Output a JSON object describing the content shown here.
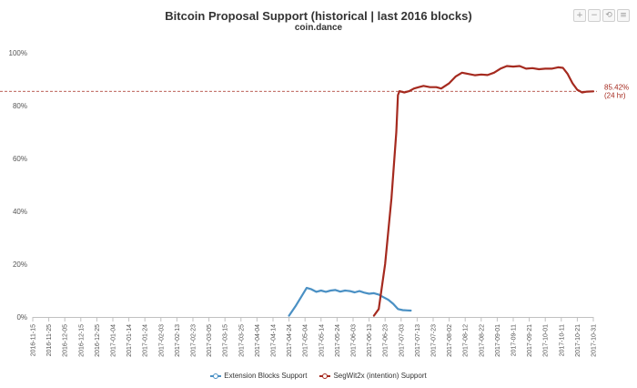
{
  "header": {
    "title": "Bitcoin Proposal Support (historical | last 2016 blocks)",
    "subtitle": "coin.dance"
  },
  "toolbar": {
    "icons": [
      "zoom-in-icon",
      "zoom-out-icon",
      "reset-zoom-icon",
      "download-icon"
    ]
  },
  "chart_data": {
    "type": "line",
    "title": "Bitcoin Proposal Support (historical | last 2016 blocks)",
    "subtitle": "coin.dance",
    "xlabel": "",
    "ylabel": "",
    "ylim": [
      0,
      100
    ],
    "yticks": [
      "0%",
      "20%",
      "40%",
      "60%",
      "80%",
      "100%"
    ],
    "categories": [
      "2016-11-15",
      "2016-11-25",
      "2016-12-05",
      "2016-12-15",
      "2016-12-25",
      "2017-01-04",
      "2017-01-14",
      "2017-01-24",
      "2017-02-03",
      "2017-02-13",
      "2017-02-23",
      "2017-03-05",
      "2017-03-15",
      "2017-03-25",
      "2017-04-04",
      "2017-04-14",
      "2017-04-24",
      "2017-05-04",
      "2017-05-14",
      "2017-05-24",
      "2017-06-03",
      "2017-06-13",
      "2017-06-23",
      "2017-07-03",
      "2017-07-13",
      "2017-07-23",
      "2017-08-02",
      "2017-08-12",
      "2017-08-22",
      "2017-09-01",
      "2017-09-11",
      "2017-09-21",
      "2017-10-01",
      "2017-10-11",
      "2017-10-21",
      "2017-10-31"
    ],
    "grid": false,
    "legend": "bottom-center",
    "series": [
      {
        "name": "Extension Blocks Support",
        "color": "#4a90c4",
        "points": [
          [
            "2017-04-24",
            0.5
          ],
          [
            "2017-04-28",
            4
          ],
          [
            "2017-05-02",
            8
          ],
          [
            "2017-05-05",
            11
          ],
          [
            "2017-05-08",
            10.5
          ],
          [
            "2017-05-11",
            9.5
          ],
          [
            "2017-05-14",
            10
          ],
          [
            "2017-05-17",
            9.5
          ],
          [
            "2017-05-20",
            10
          ],
          [
            "2017-05-23",
            10.2
          ],
          [
            "2017-05-26",
            9.6
          ],
          [
            "2017-05-29",
            10
          ],
          [
            "2017-06-01",
            9.8
          ],
          [
            "2017-06-04",
            9.3
          ],
          [
            "2017-06-07",
            9.8
          ],
          [
            "2017-06-10",
            9.2
          ],
          [
            "2017-06-13",
            8.8
          ],
          [
            "2017-06-16",
            9
          ],
          [
            "2017-06-19",
            8.5
          ],
          [
            "2017-06-22",
            7.5
          ],
          [
            "2017-06-25",
            6.5
          ],
          [
            "2017-06-28",
            5
          ],
          [
            "2017-07-01",
            3
          ],
          [
            "2017-07-04",
            2.6
          ],
          [
            "2017-07-07",
            2.5
          ],
          [
            "2017-07-09",
            2.4
          ]
        ]
      },
      {
        "name": "SegWit2x (intention) Support",
        "color": "#a52a1f",
        "points": [
          [
            "2017-06-16",
            0.5
          ],
          [
            "2017-06-19",
            3
          ],
          [
            "2017-06-23",
            20
          ],
          [
            "2017-06-27",
            45
          ],
          [
            "2017-06-30",
            70
          ],
          [
            "2017-07-01",
            84
          ],
          [
            "2017-07-02",
            85.5
          ],
          [
            "2017-07-05",
            85
          ],
          [
            "2017-07-08",
            85.5
          ],
          [
            "2017-07-11",
            86.5
          ],
          [
            "2017-07-14",
            87
          ],
          [
            "2017-07-17",
            87.5
          ],
          [
            "2017-07-21",
            87
          ],
          [
            "2017-07-25",
            87
          ],
          [
            "2017-07-28",
            86.5
          ],
          [
            "2017-08-02",
            88.5
          ],
          [
            "2017-08-06",
            91
          ],
          [
            "2017-08-10",
            92.5
          ],
          [
            "2017-08-14",
            92
          ],
          [
            "2017-08-18",
            91.5
          ],
          [
            "2017-08-22",
            91.8
          ],
          [
            "2017-08-26",
            91.6
          ],
          [
            "2017-08-30",
            92.5
          ],
          [
            "2017-09-03",
            94
          ],
          [
            "2017-09-07",
            95
          ],
          [
            "2017-09-11",
            94.8
          ],
          [
            "2017-09-15",
            95
          ],
          [
            "2017-09-19",
            94
          ],
          [
            "2017-09-23",
            94.2
          ],
          [
            "2017-09-27",
            93.8
          ],
          [
            "2017-10-01",
            94
          ],
          [
            "2017-10-05",
            94
          ],
          [
            "2017-10-09",
            94.5
          ],
          [
            "2017-10-12",
            94.3
          ],
          [
            "2017-10-15",
            92
          ],
          [
            "2017-10-18",
            88.5
          ],
          [
            "2017-10-21",
            86
          ],
          [
            "2017-10-24",
            85
          ],
          [
            "2017-10-27",
            85.3
          ],
          [
            "2017-10-31",
            85.4
          ]
        ]
      }
    ],
    "reference_line": {
      "value": 85.42,
      "label": "85.42%",
      "sublabel": "(24 hr)",
      "color": "#a52a1f"
    }
  }
}
